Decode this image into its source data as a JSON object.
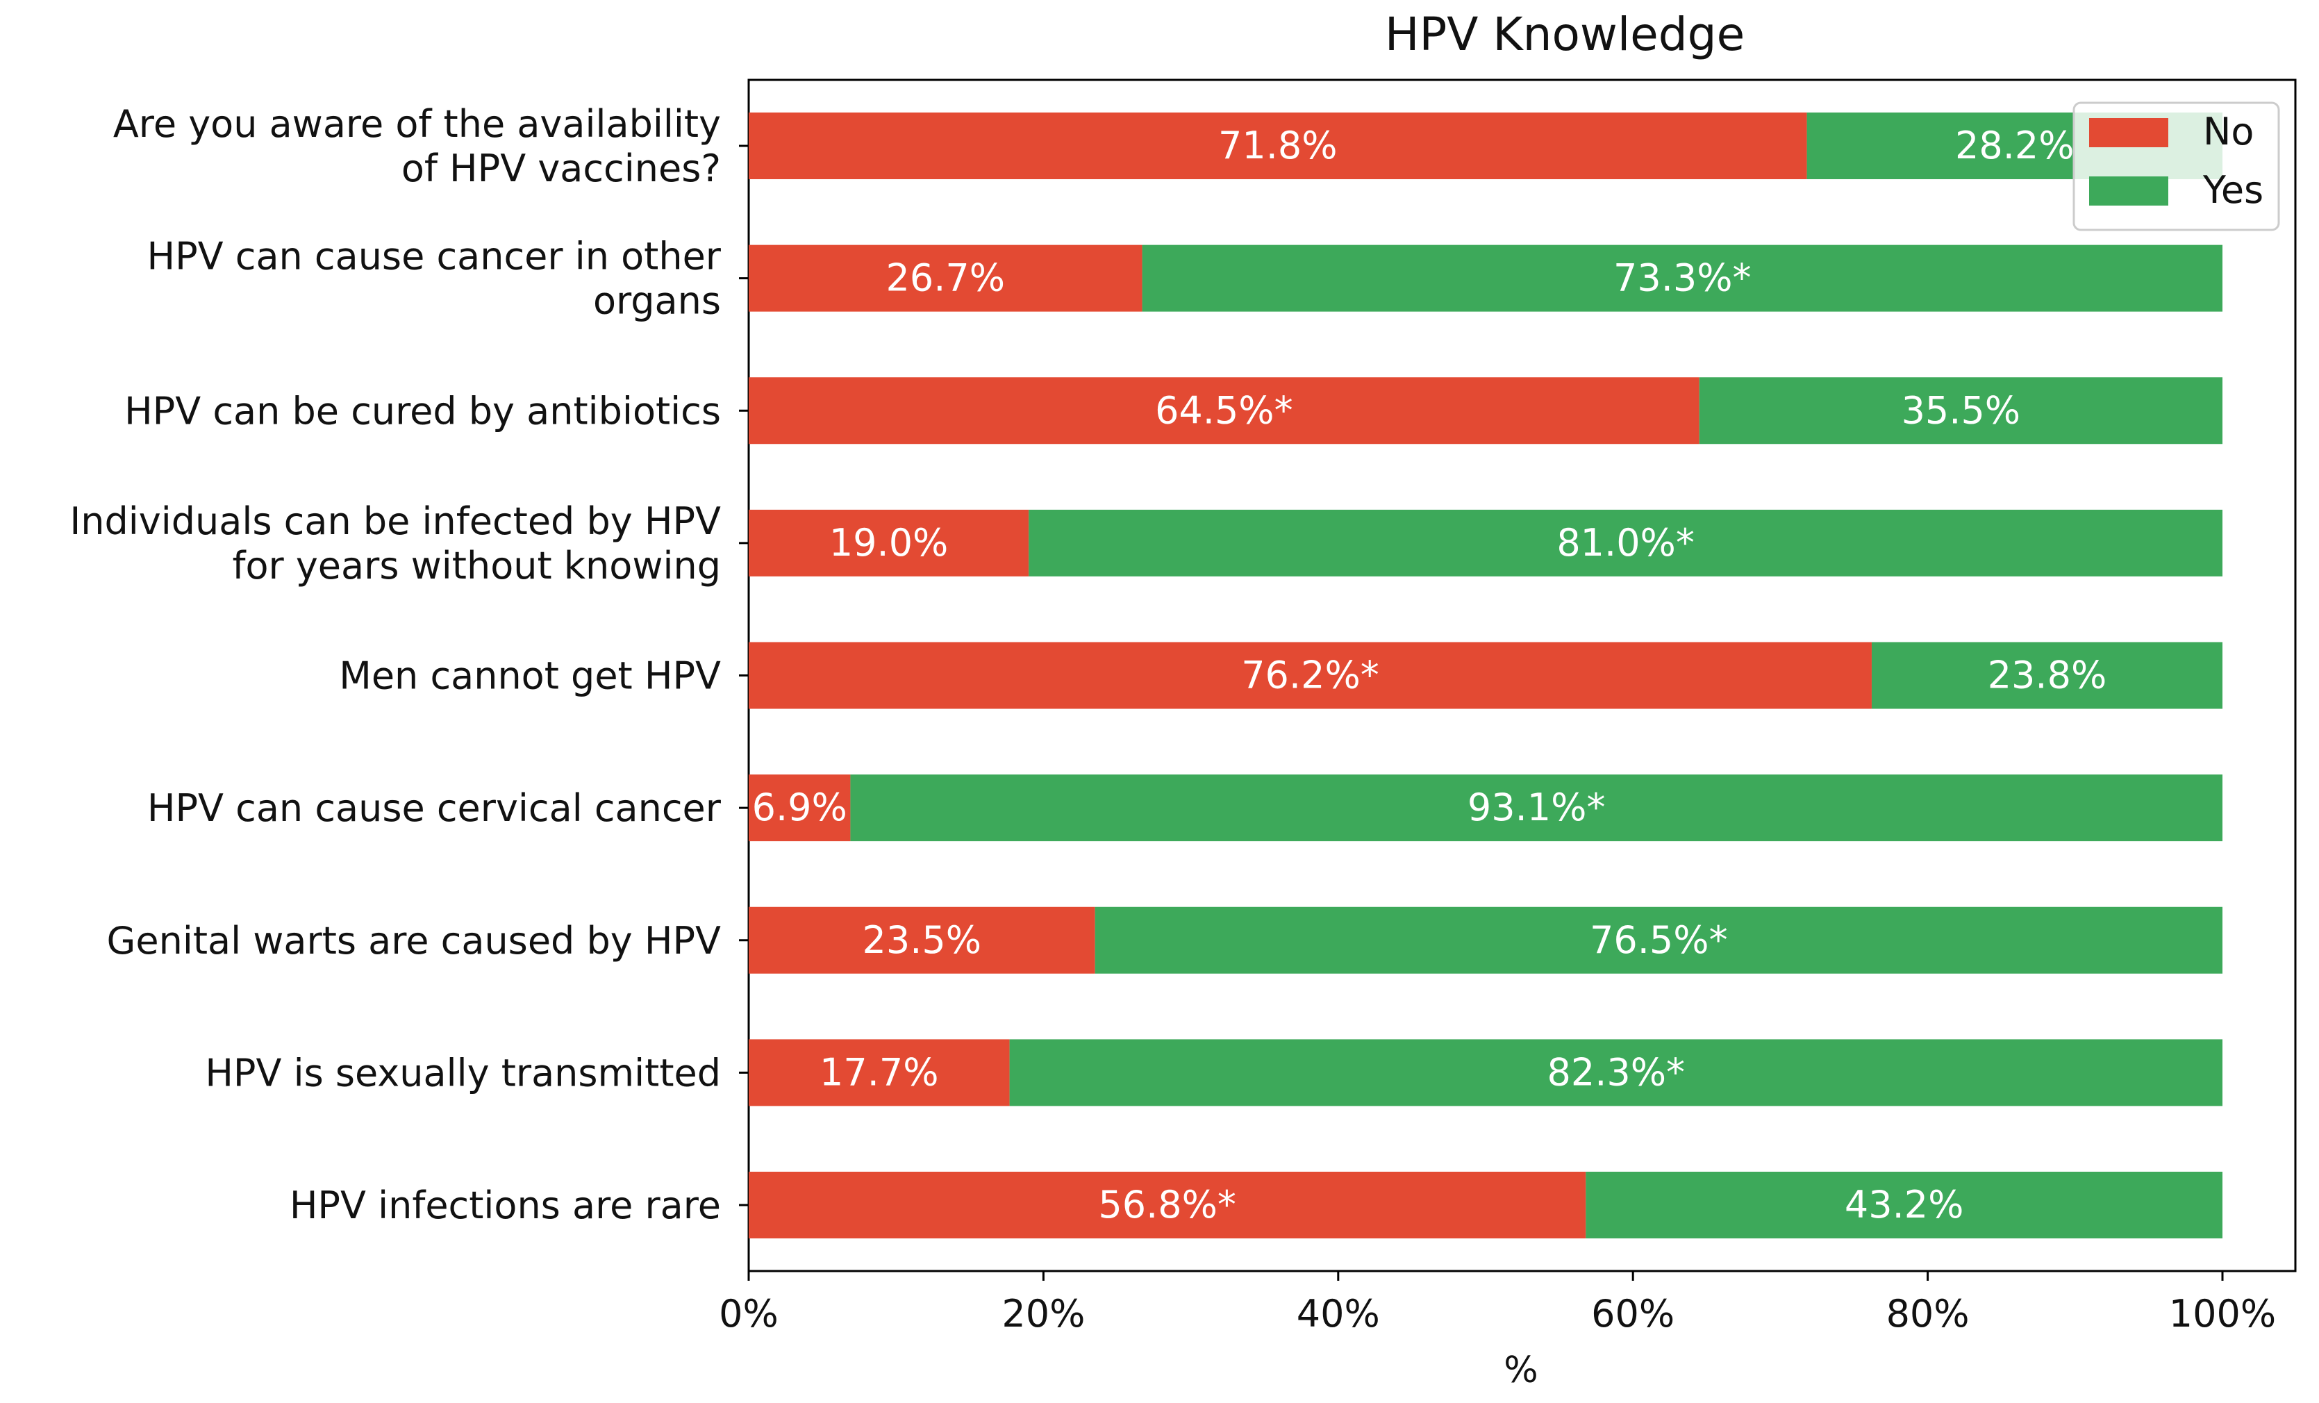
{
  "chart_data": {
    "type": "bar",
    "orientation": "horizontal",
    "stacked": true,
    "title": "HPV Knowledge",
    "xlabel": "%",
    "ylabel": "",
    "xlim": [
      0,
      100
    ],
    "xticks": [
      0,
      20,
      40,
      60,
      80,
      100
    ],
    "xtick_labels": [
      "0%",
      "20%",
      "40%",
      "60%",
      "80%",
      "100%"
    ],
    "legend_position": "top-right",
    "categories": [
      [
        "Are you aware of the availability",
        "of HPV vaccines?"
      ],
      [
        "HPV can cause cancer in other",
        "organs"
      ],
      [
        "HPV can be cured by antibiotics"
      ],
      [
        "Individuals can be infected by HPV",
        "for years without knowing"
      ],
      [
        "Men cannot get HPV"
      ],
      [
        "HPV can cause cervical cancer"
      ],
      [
        "Genital warts are caused by HPV"
      ],
      [
        "HPV is sexually transmitted"
      ],
      [
        "HPV infections are rare"
      ]
    ],
    "series": [
      {
        "name": "No",
        "color": "#E34A33",
        "values": [
          71.8,
          26.7,
          64.5,
          19.0,
          76.2,
          6.9,
          23.5,
          17.7,
          56.8
        ],
        "labels": [
          "71.8%",
          "26.7%",
          "64.5%*",
          "19.0%",
          "76.2%*",
          "6.9%",
          "23.5%",
          "17.7%",
          "56.8%*"
        ]
      },
      {
        "name": "Yes",
        "color": "#3DA95A",
        "values": [
          28.2,
          73.3,
          35.5,
          81.0,
          23.8,
          93.1,
          76.5,
          82.3,
          43.2
        ],
        "labels": [
          "28.2%",
          "73.3%*",
          "35.5%",
          "81.0%*",
          "23.8%",
          "93.1%*",
          "76.5%*",
          "82.3%*",
          "43.2%"
        ]
      }
    ]
  }
}
